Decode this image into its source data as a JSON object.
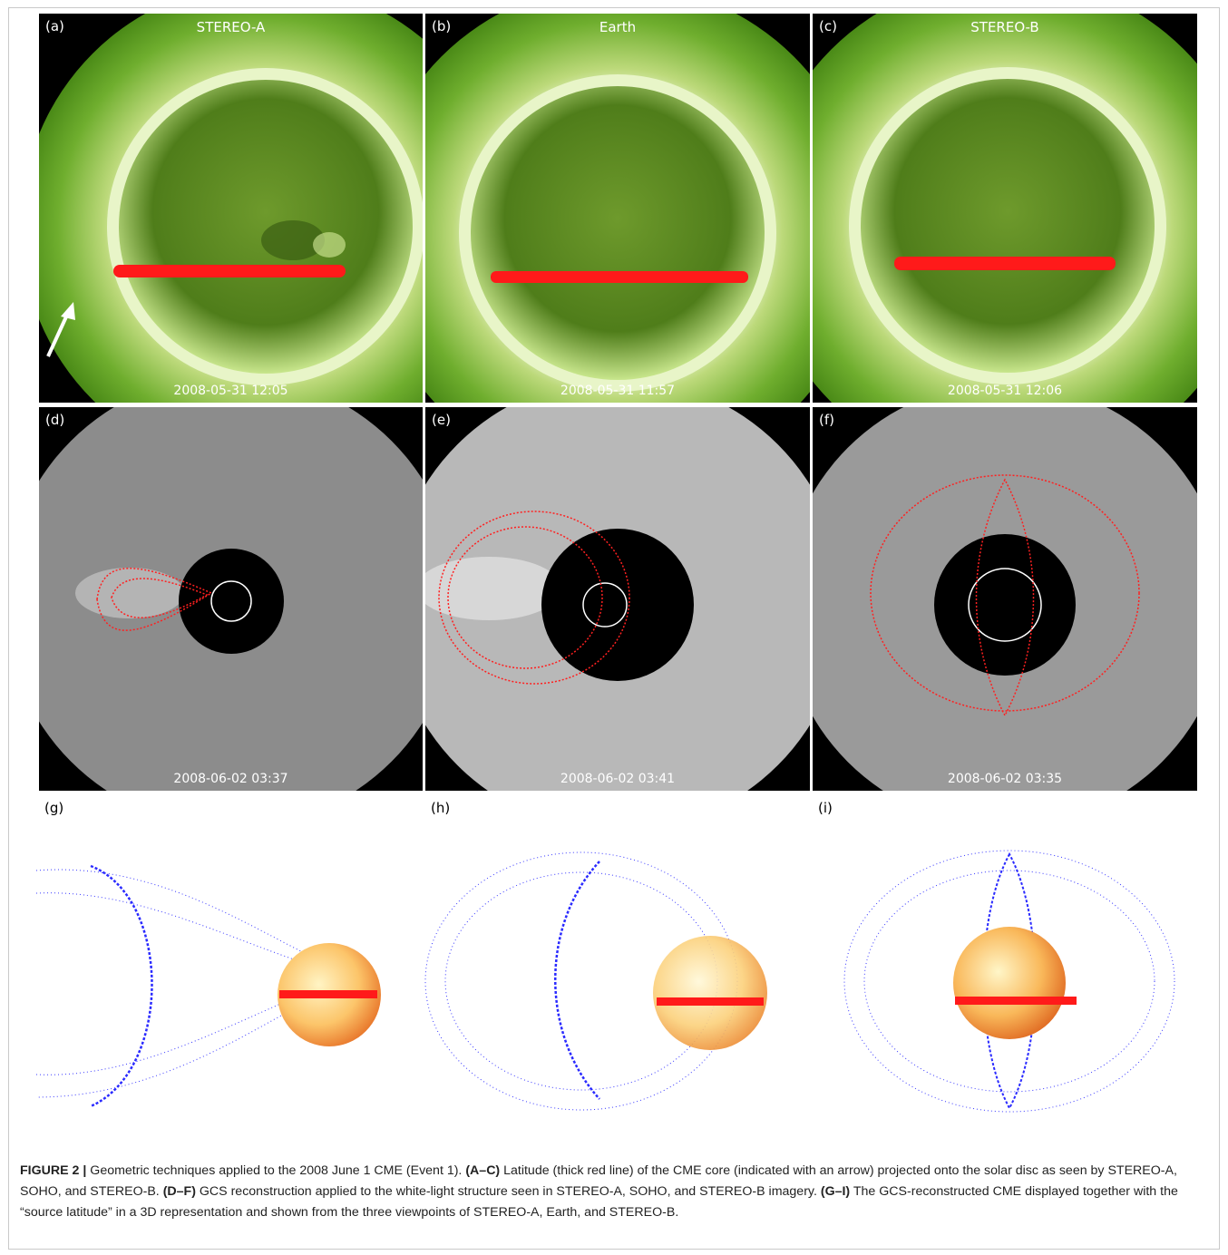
{
  "figure": {
    "euv_panels": [
      {
        "label": "(a)",
        "title": "STEREO-A",
        "timestamp": "2008-05-31 12:05"
      },
      {
        "label": "(b)",
        "title": "Earth",
        "timestamp": "2008-05-31 11:57"
      },
      {
        "label": "(c)",
        "title": "STEREO-B",
        "timestamp": "2008-05-31 12:06"
      }
    ],
    "cor_panels": [
      {
        "label": "(d)",
        "timestamp": "2008-06-02 03:37"
      },
      {
        "label": "(e)",
        "timestamp": "2008-06-02 03:41"
      },
      {
        "label": "(f)",
        "timestamp": "2008-06-02 03:35"
      }
    ],
    "model_panels": [
      {
        "label": "(g)"
      },
      {
        "label": "(h)"
      },
      {
        "label": "(i)"
      }
    ],
    "colors": {
      "euv_green": "#5d9a22",
      "latitude_red": "#ff1a1a",
      "gcs_blue": "#2a2aff",
      "sun_orange": "#f7a23b"
    }
  },
  "caption": {
    "figure_id": "FIGURE 2 |",
    "intro": " Geometric techniques applied to the 2008 June 1 CME (Event 1). ",
    "ac_label": "(A–C)",
    "ac_text": " Latitude (thick red line) of the CME core (indicated with an arrow) projected onto the solar disc as seen by STEREO-A, SOHO, and STEREO-B. ",
    "df_label": "(D–F)",
    "df_text": " GCS reconstruction applied to the white-light structure seen in STEREO-A, SOHO, and STEREO-B imagery. ",
    "gi_label": "(G–I)",
    "gi_text": " The GCS-reconstructed CME displayed together with the “source latitude” in a 3D representation and shown from the three viewpoints of STEREO-A, Earth, and STEREO-B."
  }
}
